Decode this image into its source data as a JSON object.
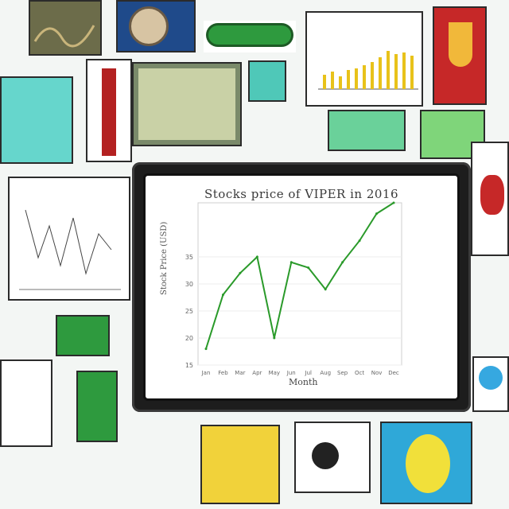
{
  "collage": {
    "tiles": [
      "tile-top-left-chart",
      "tile-top-clock",
      "tile-top-green-bone",
      "tile-top-barchart",
      "tile-top-red-tulip",
      "tile-left-cyan-panel",
      "tile-left-red-column",
      "tile-left-green-document",
      "tile-small-cyan",
      "tile-left-line-document",
      "tile-left-text-document",
      "tile-green-plant",
      "tile-bottom-yellow-fruit",
      "tile-bottom-black-berries",
      "tile-bottom-lemon",
      "tile-right-red-flower",
      "tile-right-blue-shapes"
    ]
  },
  "chart_data": {
    "type": "line",
    "title": "Stocks price of VIPER in 2016",
    "xlabel": "Month",
    "ylabel": "Stock Price (USD)",
    "categories": [
      "Jan",
      "Feb",
      "Mar",
      "Apr",
      "May",
      "Jun",
      "Jul",
      "Aug",
      "Sep",
      "Oct",
      "Nov",
      "Dec"
    ],
    "values": [
      18,
      28,
      32,
      35,
      20,
      34,
      33,
      29,
      34,
      38,
      43,
      46
    ],
    "ylim": [
      15,
      45
    ],
    "yticks": [
      "15",
      "20",
      "25",
      "30",
      "35"
    ],
    "series_color": "#2a9a2a"
  },
  "colors": {
    "accent_green": "#2a9a2a",
    "frame": "#1d1d1d",
    "cyan": "#66d6cc",
    "red": "#c62828",
    "yellow": "#e8c21a"
  }
}
